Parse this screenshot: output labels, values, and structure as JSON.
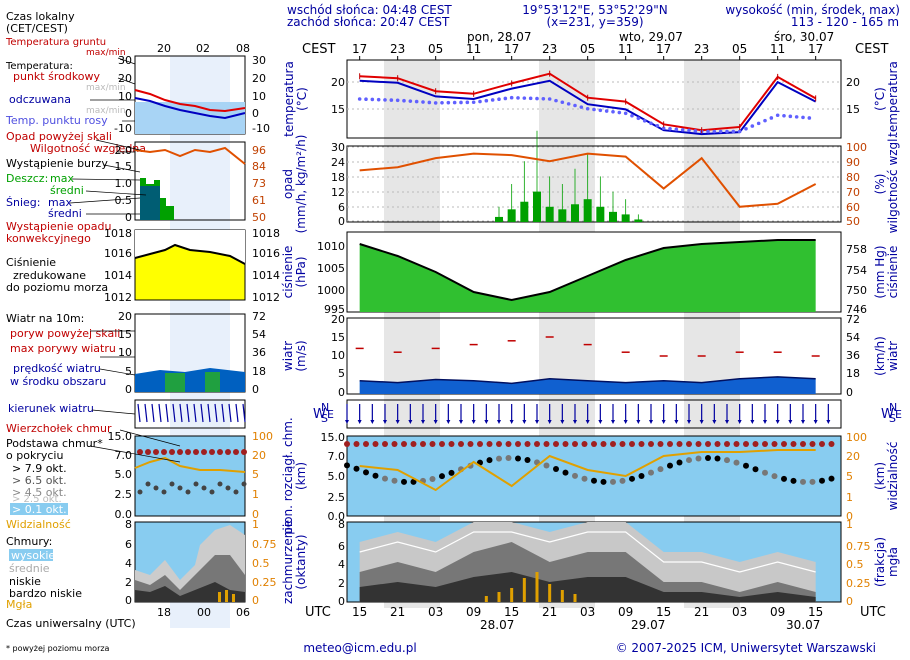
{
  "header": {
    "sunrise": "wschód słońca: 04:48 CEST",
    "sunset": "zachód słońca: 20:47 CEST",
    "coords": "19°53'12\"E, 53°52'29\"N",
    "grid": "(x=231, y=359)",
    "altitude_label": "wysokość (min, środek, max)",
    "altitude_values": "113 - 120 - 165 m"
  },
  "time_axis": {
    "top_label": "CEST",
    "bottom_label": "UTC",
    "local_hours": [
      "17",
      "23",
      "05",
      "11",
      "17",
      "23",
      "05",
      "11",
      "17",
      "23",
      "05",
      "11",
      "17"
    ],
    "utc_hours": [
      "15",
      "21",
      "03",
      "09",
      "15",
      "21",
      "03",
      "09",
      "15",
      "21",
      "03",
      "09",
      "15"
    ],
    "days_top": [
      "pon, 28.07",
      "wto, 29.07",
      "śro, 30.07"
    ],
    "days_bottom": [
      "28.07",
      "29.07",
      "30.07"
    ],
    "legend_local_ticks": [
      "20",
      "02",
      "08"
    ],
    "legend_utc_ticks": [
      "18",
      "00",
      "06"
    ]
  },
  "legend": {
    "local_time": "Czas lokalny",
    "local_time_sub": "(CET/CEST)",
    "utc_time": "Czas uniwersalny (UTC)",
    "footnote": "* powyżej poziomu morza",
    "temp": {
      "ground": "Temperatura gruntu",
      "ground_sub": "max/min",
      "title": "Temperatura:",
      "mid": "punkt środkowy",
      "mid_sub": "max/min",
      "felt": "odczuwana",
      "felt_sub": "max/min",
      "dew": "Temp. punktu rosy",
      "ticks": [
        "30",
        "20",
        "10",
        "0",
        "-10"
      ]
    },
    "precip": {
      "beyond": "Opad powyżej skali",
      "humidity": "Wilgotność względna",
      "storm": "Wystąpienie burzy",
      "rain": "Deszcz:",
      "max": "max",
      "mean": "średni",
      "snow": "Śnieg:",
      "occurrence1": "Wystąpienie opadu",
      "occurrence2": "konwekcyjnego",
      "ticks_left": [
        "2.0",
        "1.5",
        "1.0",
        "0.5",
        "0"
      ],
      "ticks_right": [
        "96",
        "84",
        "73",
        "61",
        "50"
      ]
    },
    "pressure": {
      "l1": "Ciśnienie",
      "l2": "zredukowane",
      "l3": "do poziomu morza",
      "ticks_left": [
        "1018",
        "1016",
        "1014",
        "1012"
      ],
      "ticks_right": [
        "1018",
        "1016",
        "1014",
        "1012"
      ]
    },
    "wind": {
      "title": "Wiatr na 10m:",
      "gust_beyond": "poryw powyżej skali",
      "gust": "max porywy wiatru",
      "speed1": "prędkość wiatru",
      "speed2": "w środku obszaru",
      "ticks_left": [
        "20",
        "15",
        "10",
        "5",
        "0"
      ],
      "ticks_right": [
        "72",
        "54",
        "36",
        "18",
        "0"
      ]
    },
    "dir": {
      "label": "kierunek wiatru"
    },
    "cloudbase": {
      "top": "Wierzchołek chmur",
      "base": "Podstawa chmur*",
      "cover": "o pokryciu",
      "o1": "> 7.9 okt.",
      "o2": "> 6.5 okt.",
      "o3": "> 4.5 okt.",
      "o4": "> 2.5 okt.",
      "o5": "> 0.1 okt.",
      "vis": "Widzialność",
      "ticks_left": [
        "15.0",
        "7.0",
        "5.0",
        "2.5",
        "0.0"
      ],
      "ticks_right": [
        "100",
        "20",
        "5",
        "1",
        "0"
      ]
    },
    "clouds": {
      "title": "Chmury:",
      "high": "wysokie",
      "mid": "średnie",
      "low": "niskie",
      "vlow": "bardzo niskie",
      "fog": "Mgła",
      "ticks_left": [
        "8",
        "6",
        "4",
        "2",
        "0"
      ],
      "ticks_right": [
        "1",
        "0.75",
        "0.5",
        "0.25",
        "0"
      ]
    }
  },
  "axes": {
    "temp_left": "temperatura",
    "temp_left_unit": "(°C)",
    "temp_right_unit": "(°C)",
    "temp_right": "temperatura",
    "temp_ticks": [
      "20",
      "15"
    ],
    "precip_left1": "opad",
    "precip_left2": "(mm/h, kg/m²/h)",
    "precip_right1": "wilgotność wzgl.",
    "precip_right2": "(%)",
    "precip_ticks_left": [
      "30",
      "24",
      "18",
      "12",
      "6",
      "0"
    ],
    "precip_ticks_right": [
      "100",
      "90",
      "80",
      "70",
      "60",
      "50"
    ],
    "press_left1": "ciśnienie",
    "press_left2": "(hPa)",
    "press_right1": "ciśnienie",
    "press_right2": "(mm Hg)",
    "press_ticks_left": [
      "1010",
      "1005",
      "1000",
      "995"
    ],
    "press_ticks_right": [
      "758",
      "754",
      "750",
      "746"
    ],
    "wind_left1": "wiatr",
    "wind_left2": "(m/s)",
    "wind_right1": "wiatr",
    "wind_right2": "(km/h)",
    "wind_ticks_left": [
      "20",
      "15",
      "10",
      "5",
      "0"
    ],
    "wind_ticks_right": [
      "72",
      "54",
      "36",
      "18",
      "0"
    ],
    "cb_left1": "pion. rozciągł. chm.",
    "cb_left2": "(km)",
    "cb_right1": "widzialność",
    "cb_right2": "(km)",
    "cb_ticks_left": [
      "15.0",
      "7.0",
      "5.0",
      "2.5",
      "0.0"
    ],
    "cb_ticks_right": [
      "100",
      "20",
      "5",
      "1",
      "0"
    ],
    "cl_left1": "zachmurzenie",
    "cl_left2": "(oktanty)",
    "cl_right1": "mgła",
    "cl_right2": "(frakcja)",
    "cl_ticks_left": [
      "8",
      "6",
      "4",
      "2",
      "0"
    ],
    "cl_ticks_right": [
      "1",
      "0.75",
      "0.5",
      "0.25",
      "0"
    ],
    "compass_n": "N",
    "compass_w": "W",
    "compass_s": "S",
    "compass_e": "E"
  },
  "footer": {
    "email": "meteo@icm.edu.pl",
    "copyright": "© 2007-2025 ICM, Uniwersytet Warszawski"
  },
  "colors": {
    "temp": "#e00000",
    "felt": "#0000c0",
    "dew": "#6060ff",
    "humidity": "#e05000",
    "rain": "#00a000",
    "pressure_fill": "#30c030",
    "wind_fill": "#1060d0",
    "sky": "#88ccf0",
    "text_blue": "#0000a0",
    "text_red": "#c00000"
  },
  "chart_data": [
    {
      "type": "line",
      "title": "temperatura",
      "ylabel": "(°C)",
      "ylim": [
        11,
        23
      ],
      "x_hours": [
        0,
        6,
        12,
        18,
        24,
        30,
        36,
        42,
        48,
        54,
        60,
        66,
        72
      ],
      "series": [
        {
          "values": [
            20.5,
            20.2,
            18.2,
            17.8,
            19.4,
            20.9,
            17.2,
            16.6,
            13.1,
            12.2,
            12.7,
            20.4,
            17.1
          ]
        },
        {
          "values": [
            19.8,
            19.5,
            17.4,
            17.0,
            18.6,
            19.8,
            16.2,
            15.4,
            12.2,
            11.6,
            11.9,
            19.6,
            16.6
          ]
        },
        {
          "values": [
            17.0,
            16.8,
            16.4,
            16.5,
            17.2,
            17.0,
            15.5,
            14.8,
            12.5,
            12.0,
            12.0,
            14.5,
            14.0
          ]
        }
      ]
    },
    {
      "type": "bar",
      "title": "opad",
      "ylabel": "(mm/h, kg/m²/h)",
      "ylim": [
        0,
        30
      ],
      "x_hours": [
        22,
        24,
        26,
        28,
        30,
        32,
        34,
        36,
        38,
        40,
        42,
        44
      ],
      "values": [
        2,
        5,
        8,
        12,
        6,
        5,
        7,
        9,
        6,
        4,
        3,
        1
      ]
    },
    {
      "type": "line",
      "title": "wilgotność wzgl.",
      "ylabel": "(%)",
      "ylim": [
        50,
        100
      ],
      "x_hours": [
        0,
        6,
        12,
        18,
        24,
        30,
        36,
        42,
        48,
        54,
        60,
        66,
        72
      ],
      "values": [
        84,
        86,
        92,
        95,
        94,
        90,
        95,
        93,
        72,
        92,
        60,
        62,
        75
      ]
    },
    {
      "type": "area",
      "title": "ciśnienie",
      "ylabel": "(hPa)",
      "ylim": [
        995,
        1015
      ],
      "x_hours": [
        0,
        6,
        12,
        18,
        24,
        30,
        36,
        42,
        48,
        54,
        60,
        66,
        72
      ],
      "values": [
        1012,
        1009,
        1005,
        1000,
        998,
        1000,
        1004,
        1008,
        1011,
        1012,
        1012.5,
        1013,
        1013
      ]
    },
    {
      "type": "area",
      "title": "wiatr",
      "ylabel": "(m/s)",
      "ylim": [
        0,
        20
      ],
      "x_hours": [
        0,
        6,
        12,
        18,
        24,
        30,
        36,
        42,
        48,
        54,
        60,
        66,
        72
      ],
      "series": [
        {
          "values": [
            3.5,
            3.0,
            3.8,
            3.5,
            2.8,
            4.0,
            3.5,
            3.0,
            3.5,
            3.0,
            4.0,
            4.5,
            4.0
          ]
        },
        {
          "values": [
            12,
            11,
            12,
            13,
            14,
            15,
            13,
            11,
            10,
            10,
            11,
            11,
            10
          ]
        }
      ]
    },
    {
      "type": "area",
      "title": "zachmurzenie",
      "ylabel": "(oktanty)",
      "ylim": [
        0,
        8
      ],
      "x_hours": [
        0,
        6,
        12,
        18,
        24,
        30,
        36,
        42,
        48,
        54,
        60,
        66,
        72
      ],
      "values": [
        3,
        4,
        3,
        5,
        6,
        4,
        5,
        5,
        2,
        2,
        1,
        2,
        1
      ]
    }
  ]
}
